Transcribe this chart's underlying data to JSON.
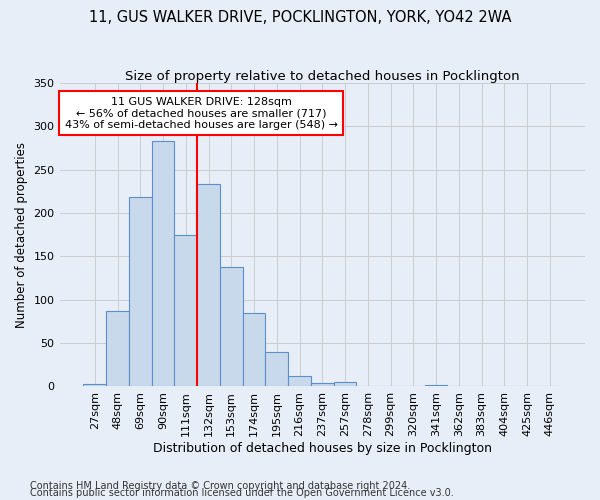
{
  "title1": "11, GUS WALKER DRIVE, POCKLINGTON, YORK, YO42 2WA",
  "title2": "Size of property relative to detached houses in Pocklington",
  "xlabel": "Distribution of detached houses by size in Pocklington",
  "ylabel": "Number of detached properties",
  "footnote1": "Contains HM Land Registry data © Crown copyright and database right 2024.",
  "footnote2": "Contains public sector information licensed under the Open Government Licence v3.0.",
  "bin_labels": [
    "27sqm",
    "48sqm",
    "69sqm",
    "90sqm",
    "111sqm",
    "132sqm",
    "153sqm",
    "174sqm",
    "195sqm",
    "216sqm",
    "237sqm",
    "257sqm",
    "278sqm",
    "299sqm",
    "320sqm",
    "341sqm",
    "362sqm",
    "383sqm",
    "404sqm",
    "425sqm",
    "446sqm"
  ],
  "bar_values": [
    3,
    87,
    218,
    283,
    175,
    233,
    138,
    85,
    40,
    12,
    4,
    5,
    1,
    1,
    0,
    2,
    0,
    1,
    0,
    1,
    0
  ],
  "bar_color": "#c9d9ec",
  "bar_edge_color": "#5b8fc9",
  "grid_color": "#cccccc",
  "bg_color": "#e8eef7",
  "vline_color": "red",
  "annotation_text": "11 GUS WALKER DRIVE: 128sqm\n← 56% of detached houses are smaller (717)\n43% of semi-detached houses are larger (548) →",
  "annotation_box_color": "white",
  "annotation_box_edge": "red",
  "ylim": [
    0,
    350
  ],
  "yticks": [
    0,
    50,
    100,
    150,
    200,
    250,
    300,
    350
  ],
  "title1_fontsize": 10.5,
  "title2_fontsize": 9.5,
  "xlabel_fontsize": 9,
  "ylabel_fontsize": 8.5,
  "tick_fontsize": 8,
  "annotation_fontsize": 8,
  "footnote_fontsize": 7
}
